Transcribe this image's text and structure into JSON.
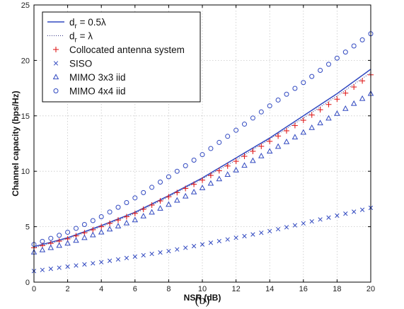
{
  "chart_data": {
    "type": "line",
    "xlabel": "NSR (dB)",
    "ylabel": "Channel capacity (bps/Hz)",
    "caption": "(b)",
    "xlim": [
      0,
      20
    ],
    "ylim": [
      0,
      25
    ],
    "xticks": [
      "0",
      "2",
      "4",
      "6",
      "8",
      "10",
      "12",
      "14",
      "16",
      "18",
      "20"
    ],
    "yticks": [
      "0",
      "5",
      "10",
      "15",
      "20",
      "25"
    ],
    "grid": true,
    "legend_position": "top-left",
    "series": [
      {
        "name": "d_r = 0.5λ",
        "legend_main": "d",
        "legend_sub": "r",
        "legend_rest": " = 0.5λ",
        "style": "solid-line",
        "color": "#3048c0",
        "x": [
          0,
          2,
          4,
          6,
          8,
          10,
          12,
          14,
          16,
          18,
          20
        ],
        "y": [
          3.2,
          4.0,
          5.1,
          6.3,
          7.8,
          9.4,
          11.2,
          13.0,
          15.0,
          17.0,
          19.2
        ]
      },
      {
        "name": "d_r = λ",
        "legend_main": "d",
        "legend_sub": "r",
        "legend_rest": " = λ",
        "style": "dotted-line",
        "color": "#303080",
        "x": [
          0,
          2,
          4,
          6,
          8,
          10,
          12,
          14,
          16,
          18,
          20
        ],
        "y": [
          3.1,
          3.9,
          5.0,
          6.2,
          7.7,
          9.3,
          11.0,
          12.9,
          14.8,
          16.8,
          18.9
        ]
      },
      {
        "name": "Collocated antenna system",
        "style": "plus",
        "color": "#e02020",
        "x": [
          0,
          2,
          4,
          6,
          8,
          10,
          12,
          14,
          16,
          18,
          20
        ],
        "y": [
          3.1,
          3.9,
          5.0,
          6.2,
          7.7,
          9.2,
          10.9,
          12.7,
          14.6,
          16.5,
          18.7
        ]
      },
      {
        "name": "SISO",
        "style": "x",
        "color": "#3048c0",
        "x": [
          0,
          2,
          4,
          6,
          8,
          10,
          12,
          14,
          16,
          18,
          20
        ],
        "y": [
          1.0,
          1.4,
          1.8,
          2.3,
          2.8,
          3.4,
          4.0,
          4.6,
          5.3,
          6.0,
          6.7
        ]
      },
      {
        "name": "MIMO 3x3 iid",
        "style": "triangle",
        "color": "#3048c0",
        "x": [
          0,
          2,
          4,
          6,
          8,
          10,
          12,
          14,
          16,
          18,
          20
        ],
        "y": [
          2.7,
          3.5,
          4.5,
          5.6,
          7.0,
          8.5,
          10.1,
          11.8,
          13.5,
          15.2,
          17.0
        ]
      },
      {
        "name": "MIMO 4x4 iid",
        "style": "circle",
        "color": "#3048c0",
        "x": [
          0,
          2,
          4,
          6,
          8,
          10,
          12,
          14,
          16,
          18,
          20
        ],
        "y": [
          3.4,
          4.5,
          5.9,
          7.6,
          9.5,
          11.5,
          13.7,
          15.9,
          18.0,
          20.2,
          22.4
        ]
      }
    ]
  }
}
